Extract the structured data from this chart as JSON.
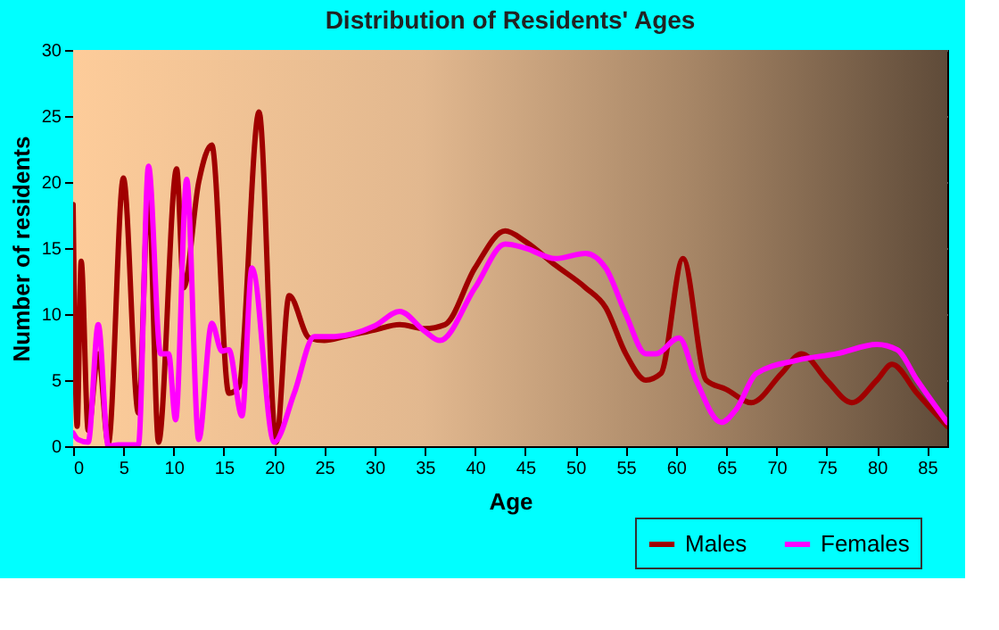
{
  "chart_data": {
    "type": "line",
    "title": "Distribution of Residents' Ages",
    "xlabel": "Age",
    "ylabel": "Number of residents",
    "xlim": [
      0,
      87
    ],
    "xticks": [
      0,
      5,
      10,
      15,
      20,
      25,
      30,
      35,
      40,
      45,
      50,
      55,
      60,
      65,
      70,
      75,
      80,
      85
    ],
    "ylim": [
      0,
      30
    ],
    "yticks": [
      0,
      5,
      10,
      15,
      20,
      25,
      30
    ],
    "grid": true,
    "legend": "bottom right",
    "line_style": "solid",
    "marker": "none",
    "series": [
      {
        "name": "Males",
        "color": "#a00000",
        "x": [
          0,
          0.4,
          0.8,
          1.5,
          2.5,
          3.5,
          5,
          6.5,
          7.5,
          8.5,
          10.3,
          11,
          12.5,
          13.8,
          15.5,
          16.5,
          18.5,
          20.2,
          21.5,
          23.5,
          25,
          27,
          30,
          32.5,
          35,
          37,
          40,
          43,
          45,
          48,
          51,
          53,
          55,
          57,
          58.5,
          60.7,
          63,
          65,
          67.5,
          70.5,
          72.5,
          75,
          77.5,
          80,
          81.5,
          84,
          87
        ],
        "values": [
          18.3,
          1.5,
          14,
          1.2,
          7,
          0.2,
          20.3,
          2.5,
          19.2,
          0.3,
          21,
          12,
          20,
          22.8,
          4,
          4.5,
          25.3,
          0.3,
          11.4,
          8.2,
          8,
          8.3,
          8.8,
          9.2,
          8.9,
          9.2,
          13.5,
          16.3,
          15.5,
          13.7,
          12,
          10.5,
          7,
          5,
          5.5,
          14.2,
          5,
          4.3,
          3.3,
          5.5,
          7,
          5,
          3.3,
          5,
          6.2,
          4,
          1.5
        ]
      },
      {
        "name": "Females",
        "color": "#ff00ff",
        "x": [
          0,
          0.5,
          1.5,
          2.5,
          3.5,
          4.5,
          5.5,
          6.5,
          7.5,
          8.7,
          9.5,
          10.2,
          11.3,
          12.5,
          13.8,
          14.8,
          15.5,
          16.8,
          17.8,
          20,
          22,
          24,
          26,
          30,
          32.5,
          35,
          36.5,
          40,
          43,
          45,
          48,
          51,
          53,
          55,
          57,
          58,
          60.3,
          62,
          64.5,
          66,
          68,
          72,
          76,
          80,
          82,
          84,
          87
        ],
        "values": [
          1,
          0.5,
          0.3,
          9.2,
          0,
          0.1,
          0.1,
          0.1,
          21.2,
          7,
          7,
          2,
          20.2,
          0.5,
          9.3,
          7.2,
          7.3,
          2.3,
          13.5,
          0.3,
          4,
          8.3,
          8.3,
          9.1,
          10.2,
          8.7,
          8,
          12,
          15.3,
          15,
          14.2,
          14.6,
          13.5,
          10,
          7,
          7,
          8.2,
          5,
          1.8,
          2.8,
          5.5,
          6.5,
          7,
          7.7,
          7.3,
          5,
          1.8
        ]
      }
    ]
  }
}
